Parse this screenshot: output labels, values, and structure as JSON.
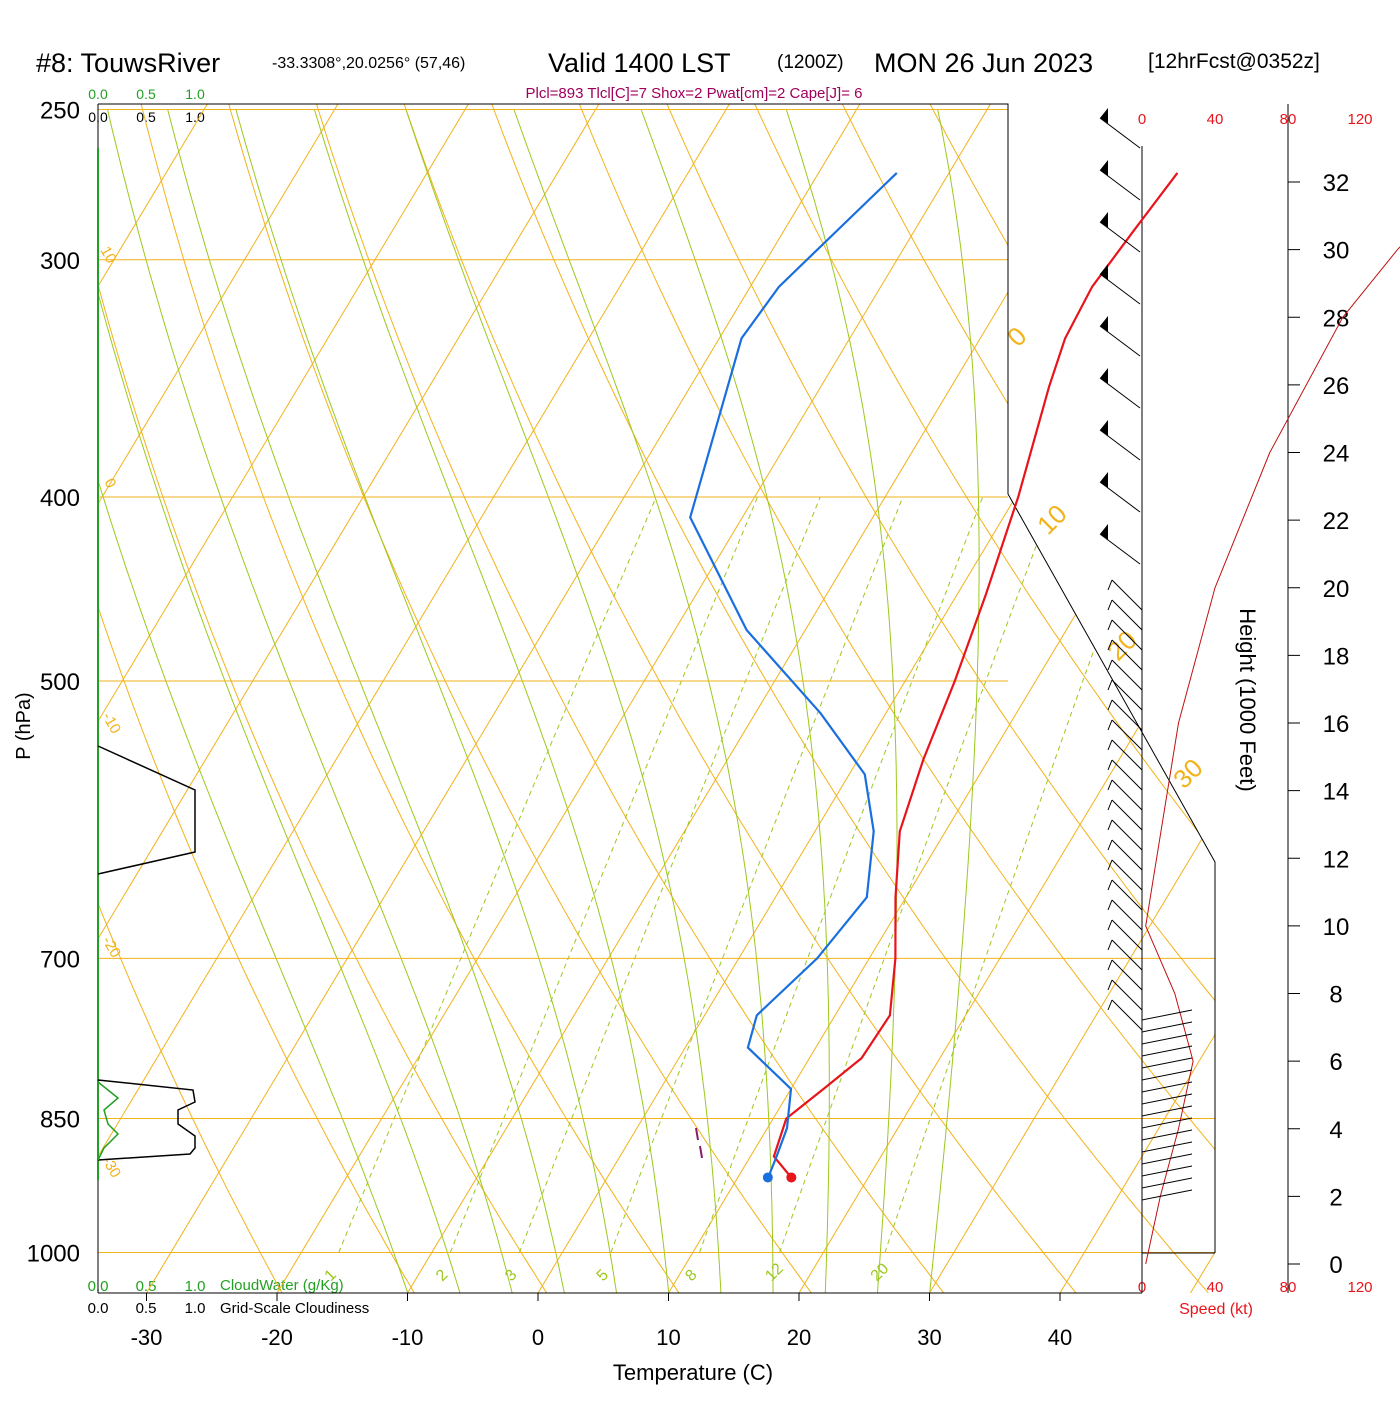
{
  "title": {
    "station": "#8: TouwsRiver",
    "coords": "-33.3308°,20.0256° (57,46)",
    "valid": "Valid 1400 LST",
    "zulu": "(1200Z)",
    "date": "MON 26 Jun 2023",
    "forecast": "[12hrFcst@0352z]"
  },
  "indices": "Plcl=893 Tlcl[C]=7 Shox=2 Pwat[cm]=2 Cape[J]= 6",
  "cloud": {
    "top_ticks": [
      "0.0",
      "0.5",
      "1.0"
    ],
    "bottom_ticks": [
      "0.0",
      "0.5",
      "1.0"
    ],
    "cloudwater_label": "CloudWater (g/Kg)",
    "cloudiness_label": "Grid-Scale Cloudiness"
  },
  "speed_axis": {
    "ticks": [
      "0",
      "40",
      "80",
      "120"
    ],
    "label": "Speed (kt)"
  },
  "chart_data": {
    "type": "line",
    "chart_kind": "skew-T log-P sounding",
    "xlabel": "Temperature (C)",
    "ylabel": "P (hPa)",
    "y2label": "Height (1000 Feet)",
    "x_ticks": [
      -30,
      -20,
      -10,
      0,
      10,
      20,
      30,
      40
    ],
    "p_ticks": [
      250,
      300,
      400,
      500,
      700,
      850,
      1000
    ],
    "height_ticks": [
      0,
      2,
      4,
      6,
      8,
      10,
      12,
      14,
      16,
      18,
      20,
      22,
      24,
      26,
      28,
      30,
      32
    ],
    "isotherm_labels": [
      "10",
      "0",
      "-10",
      "-20",
      "-30",
      "0",
      "10",
      "20",
      "30"
    ],
    "mixing_ratio_labels": [
      "1",
      "2",
      "3",
      "5",
      "8",
      "12",
      "20"
    ],
    "series": [
      {
        "name": "Temperature",
        "color": "#e8141c",
        "points": [
          [
            270,
            -2.5
          ],
          [
            290,
            -3.2
          ],
          [
            310,
            -3.8
          ],
          [
            330,
            -3.5
          ],
          [
            350,
            -2.5
          ],
          [
            400,
            0.2
          ],
          [
            450,
            2.2
          ],
          [
            500,
            3.8
          ],
          [
            550,
            5.0
          ],
          [
            600,
            6.5
          ],
          [
            650,
            9.2
          ],
          [
            700,
            12.0
          ],
          [
            750,
            14.2
          ],
          [
            790,
            14.0
          ],
          [
            820,
            12.5
          ],
          [
            850,
            11.0
          ],
          [
            890,
            11.8
          ],
          [
            913,
            14.1
          ]
        ]
      },
      {
        "name": "Dewpoint",
        "color": "#1a6fdf",
        "points": [
          [
            270,
            -24.0
          ],
          [
            310,
            -27.8
          ],
          [
            330,
            -28.3
          ],
          [
            410,
            -24.0
          ],
          [
            470,
            -14.5
          ],
          [
            520,
            -5.0
          ],
          [
            560,
            1.2
          ],
          [
            600,
            4.5
          ],
          [
            650,
            7.0
          ],
          [
            700,
            6.0
          ],
          [
            750,
            4.0
          ],
          [
            780,
            4.8
          ],
          [
            820,
            10.0
          ],
          [
            860,
            11.5
          ],
          [
            890,
            12.0
          ],
          [
            911,
            12.3
          ]
        ]
      }
    ],
    "surface": {
      "pressure": 913,
      "temperature": 14.1,
      "dewpoint": 12.3
    },
    "wind_speed_kt_profile": [
      [
        0,
        2
      ],
      [
        2,
        10
      ],
      [
        4,
        20
      ],
      [
        6,
        28
      ],
      [
        8,
        18
      ],
      [
        10,
        2
      ],
      [
        12,
        8
      ],
      [
        16,
        20
      ],
      [
        20,
        40
      ],
      [
        24,
        70
      ],
      [
        28,
        110
      ],
      [
        30,
        140
      ],
      [
        32,
        175
      ]
    ]
  }
}
